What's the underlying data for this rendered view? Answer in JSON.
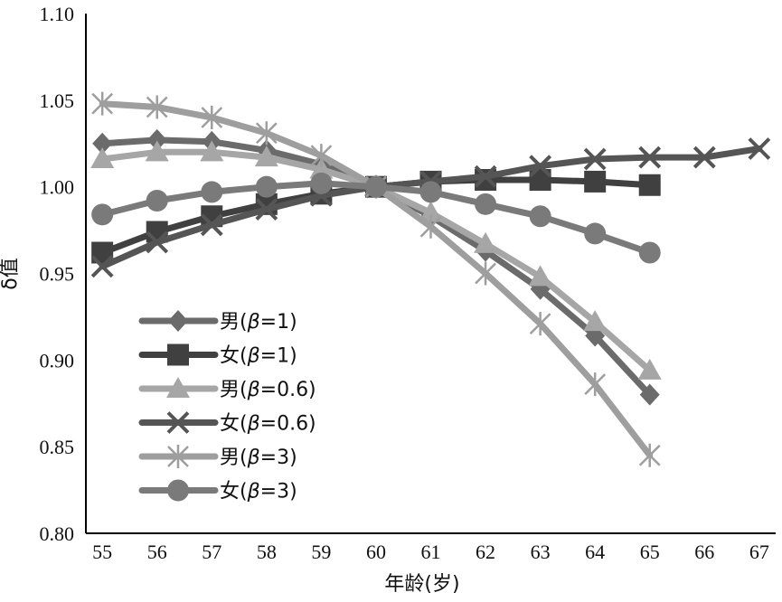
{
  "chart_data": {
    "type": "line",
    "title": "",
    "xlabel": "年龄(岁)",
    "ylabel": "δ值",
    "x": [
      55,
      56,
      57,
      58,
      59,
      60,
      61,
      62,
      63,
      64,
      65,
      66,
      67
    ],
    "xlim": [
      54.7,
      67.3
    ],
    "ylim": [
      0.8,
      1.1
    ],
    "yticks": [
      "0.80",
      "0.85",
      "0.90",
      "0.95",
      "1.00",
      "1.05",
      "1.10"
    ],
    "grid": false,
    "legend_position": "bottom-left",
    "series": [
      {
        "name": "男(β=1)",
        "legend_prefix": "男(",
        "legend_beta": "β",
        "legend_suffix": "=1)",
        "marker": "diamond",
        "color": "#6b6b6b",
        "x": [
          55,
          56,
          57,
          58,
          59,
          60,
          61,
          62,
          63,
          64,
          65
        ],
        "values": [
          1.025,
          1.027,
          1.026,
          1.021,
          1.013,
          1.0,
          0.983,
          0.963,
          0.941,
          0.914,
          0.88
        ]
      },
      {
        "name": "女(β=1)",
        "legend_prefix": "女(",
        "legend_beta": "β",
        "legend_suffix": "=1)",
        "marker": "square",
        "color": "#404040",
        "x": [
          55,
          56,
          57,
          58,
          59,
          60,
          61,
          62,
          63,
          64,
          65
        ],
        "values": [
          0.962,
          0.974,
          0.983,
          0.99,
          0.996,
          1.0,
          1.003,
          1.004,
          1.004,
          1.003,
          1.001
        ]
      },
      {
        "name": "男(β=0.6)",
        "legend_prefix": "男(",
        "legend_beta": "β",
        "legend_suffix": "=0.6)",
        "marker": "triangle",
        "color": "#a6a6a6",
        "x": [
          55,
          56,
          57,
          58,
          59,
          60,
          61,
          62,
          63,
          64,
          65
        ],
        "values": [
          1.016,
          1.02,
          1.02,
          1.017,
          1.01,
          1.0,
          0.985,
          0.967,
          0.948,
          0.922,
          0.894
        ]
      },
      {
        "name": "女(β=0.6)",
        "legend_prefix": "女(",
        "legend_beta": "β",
        "legend_suffix": "=0.6)",
        "marker": "x",
        "color": "#555555",
        "x": [
          55,
          56,
          57,
          58,
          59,
          60,
          61,
          62,
          63,
          64,
          65,
          66,
          67
        ],
        "values": [
          0.954,
          0.968,
          0.978,
          0.987,
          0.995,
          1.0,
          1.003,
          1.006,
          1.012,
          1.016,
          1.017,
          1.017,
          1.022
        ]
      },
      {
        "name": "男(β=3)",
        "legend_prefix": "男(",
        "legend_beta": "β",
        "legend_suffix": "=3)",
        "marker": "star",
        "color": "#9e9e9e",
        "x": [
          55,
          56,
          57,
          58,
          59,
          60,
          61,
          62,
          63,
          64,
          65
        ],
        "values": [
          1.048,
          1.046,
          1.04,
          1.031,
          1.018,
          1.0,
          0.977,
          0.95,
          0.921,
          0.886,
          0.845
        ]
      },
      {
        "name": "女(β=3)",
        "legend_prefix": "女(",
        "legend_beta": "β",
        "legend_suffix": "=3)",
        "marker": "circle",
        "color": "#7a7a7a",
        "x": [
          55,
          56,
          57,
          58,
          59,
          60,
          61,
          62,
          63,
          64,
          65
        ],
        "values": [
          0.984,
          0.992,
          0.997,
          1.0,
          1.002,
          1.0,
          0.997,
          0.99,
          0.983,
          0.973,
          0.962
        ]
      }
    ]
  }
}
